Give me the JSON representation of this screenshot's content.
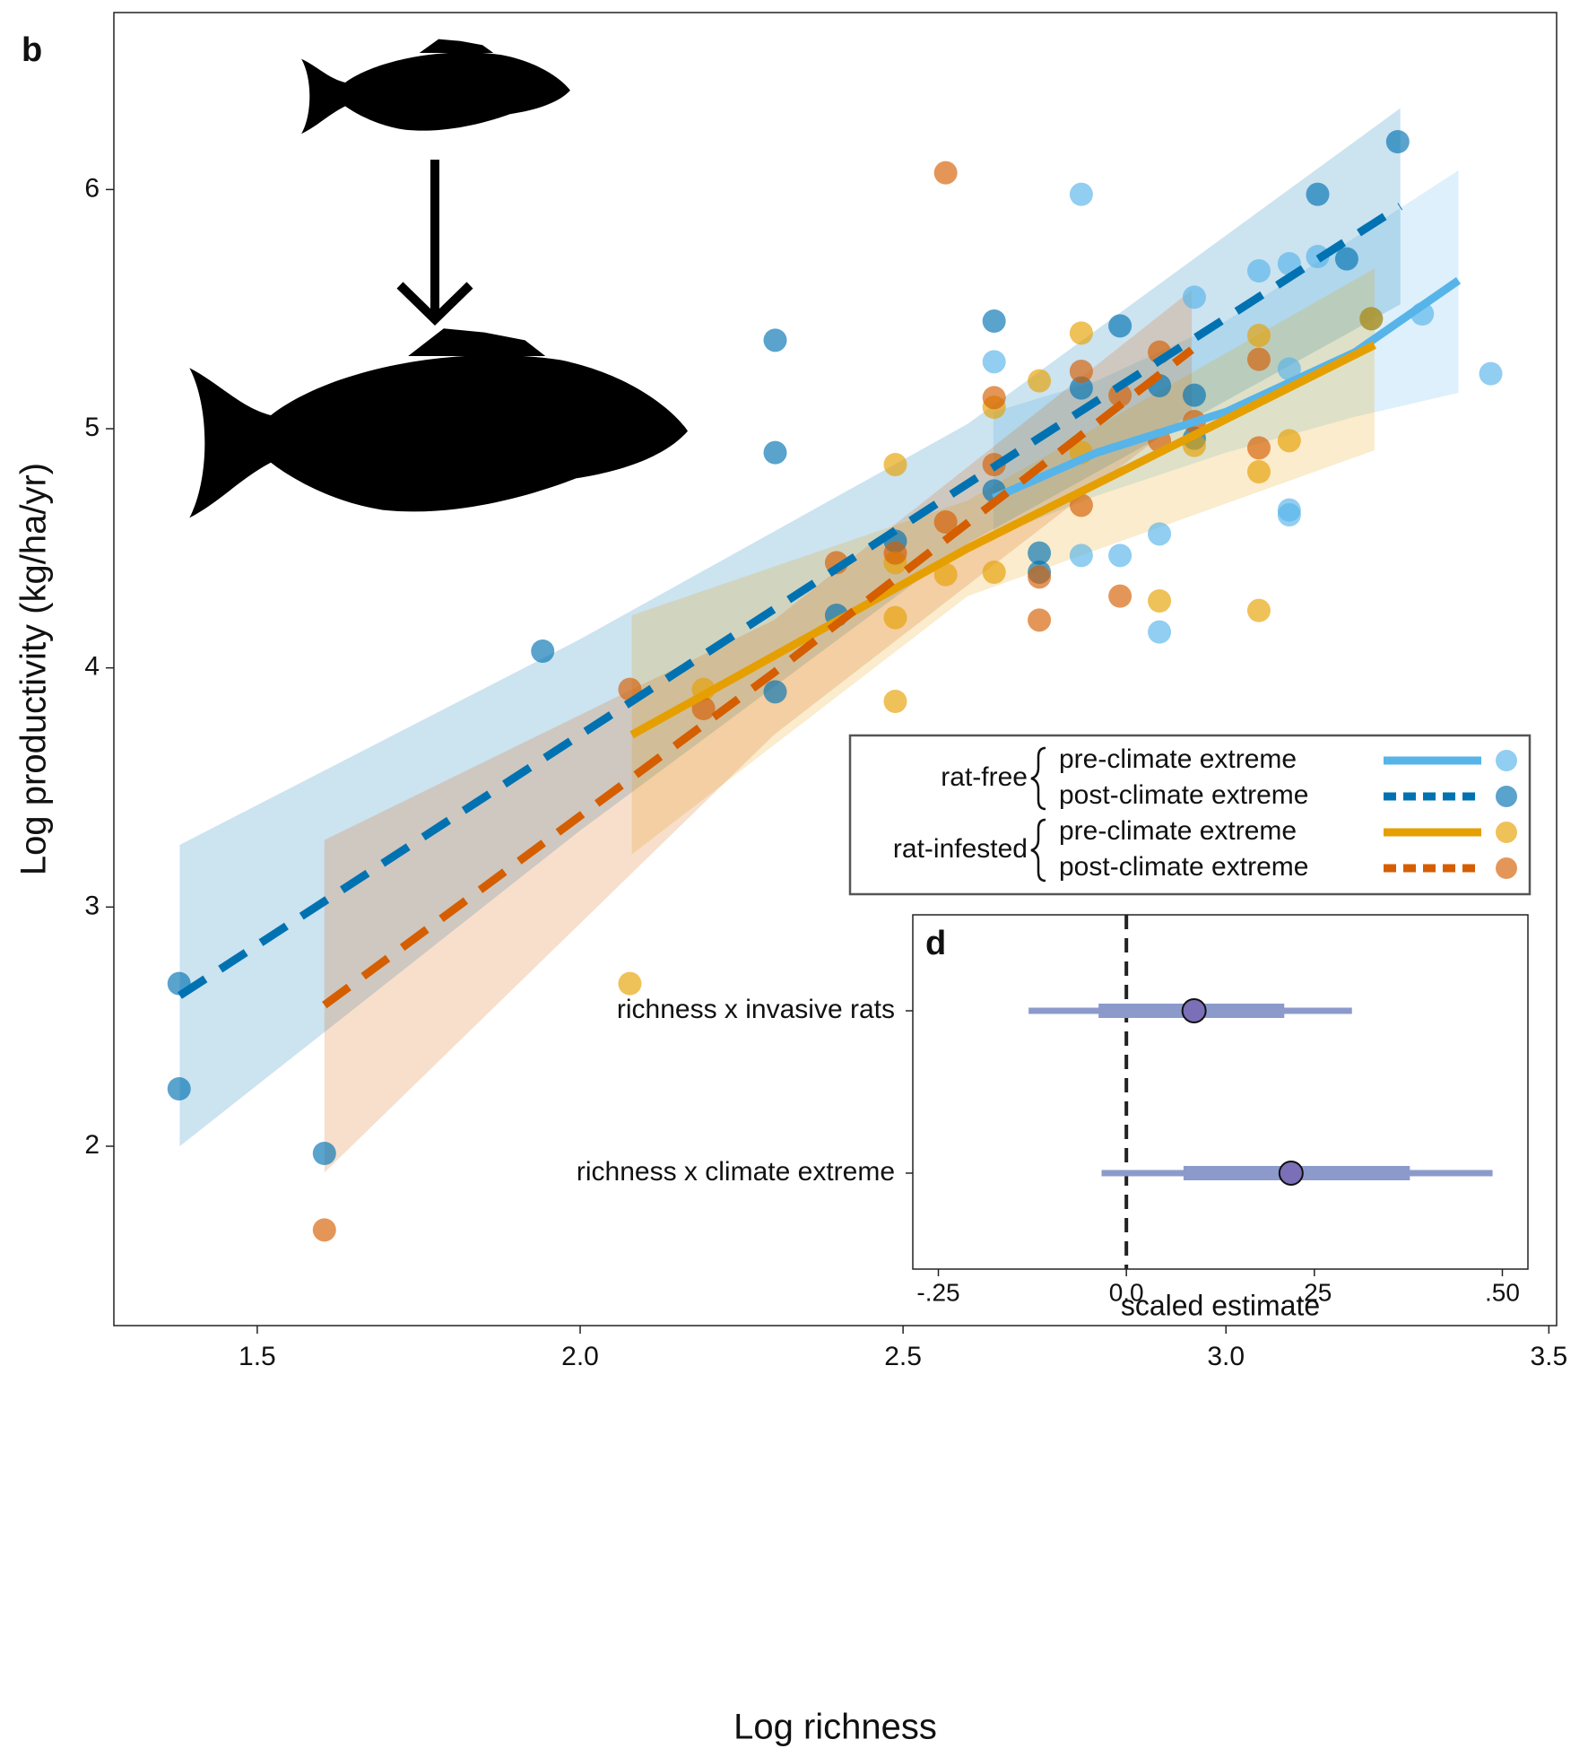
{
  "chart_data": [
    {
      "type": "scatter",
      "panel_label": "b",
      "x_label": "Log richness",
      "y_label": "Log productivity (kg/ha/yr)",
      "xlim": [
        1.278,
        3.512
      ],
      "ylim": [
        1.25,
        6.74
      ],
      "xticks": [
        1.5,
        {
          "value": 2,
          "label": "2.0"
        },
        2.5,
        {
          "value": 3,
          "label": "3.0"
        },
        3.5
      ],
      "yticks": [
        2,
        3,
        4,
        5,
        6
      ],
      "groups": [
        {
          "name": "rat-free",
          "series": [
            {
              "name": "pre-climate extreme",
              "color": "#56B4E9",
              "line_style": "solid",
              "x": [
                2.776,
                2.641,
                2.951,
                3.051,
                3.098,
                3.142,
                3.304,
                3.41,
                3.098,
                3.098,
                2.897,
                2.836,
                2.776,
                2.897,
                3.098
              ],
              "y": [
                5.98,
                5.28,
                5.55,
                5.66,
                5.69,
                5.72,
                5.48,
                5.23,
                4.66,
                4.64,
                4.56,
                4.47,
                4.47,
                4.15,
                5.25
              ],
              "fit": {
                "x": [
                  2.64,
                  2.8,
                  3.0,
                  3.2,
                  3.36
                ],
                "y": [
                  4.71,
                  4.9,
                  5.07,
                  5.32,
                  5.62
                ],
                "lower": [
                  4.55,
                  4.72,
                  4.9,
                  5.05,
                  5.15
                ],
                "upper": [
                  5.07,
                  5.2,
                  5.45,
                  5.8,
                  6.08
                ]
              }
            },
            {
              "name": "post-climate extreme",
              "color": "#0072B2",
              "line_style": "dashed",
              "x": [
                1.379,
                1.379,
                1.604,
                1.942,
                2.302,
                2.302,
                2.302,
                2.641,
                2.836,
                3.266,
                3.142,
                3.187,
                2.397,
                2.488,
                2.641,
                2.711,
                2.711,
                2.776,
                2.897,
                2.951,
                2.951,
                3.225
              ],
              "y": [
                2.68,
                2.24,
                1.97,
                4.07,
                5.37,
                4.9,
                3.9,
                5.45,
                5.43,
                6.2,
                5.98,
                5.71,
                4.22,
                4.53,
                4.74,
                4.48,
                4.4,
                5.17,
                5.18,
                5.14,
                4.96,
                5.46
              ],
              "fit": {
                "x": [
                  1.38,
                  2.0,
                  2.6,
                  3.27
                ],
                "y": [
                  2.63,
                  3.72,
                  4.77,
                  5.93
                ],
                "lower": [
                  2.0,
                  3.32,
                  4.52,
                  5.52
                ],
                "upper": [
                  3.26,
                  4.12,
                  5.02,
                  6.34
                ]
              }
            }
          ]
        },
        {
          "name": "rat-infested",
          "series": [
            {
              "name": "pre-climate extreme",
              "color": "#E69F00",
              "line_style": "solid",
              "x": [
                2.077,
                2.488,
                2.488,
                2.776,
                2.711,
                2.641,
                2.191,
                2.488,
                2.488,
                2.566,
                2.641,
                2.897,
                3.051,
                3.051,
                3.098,
                3.051,
                2.951,
                2.776,
                3.225
              ],
              "y": [
                2.68,
                3.86,
                4.85,
                5.4,
                5.2,
                5.09,
                3.91,
                4.44,
                4.21,
                4.39,
                4.4,
                4.28,
                4.24,
                4.82,
                4.95,
                5.39,
                4.93,
                4.9,
                5.46
              ],
              "fit": {
                "x": [
                  2.08,
                  2.6,
                  3.23
                ],
                "y": [
                  3.72,
                  4.5,
                  5.35
                ],
                "lower": [
                  3.22,
                  4.3,
                  4.91
                ],
                "upper": [
                  4.22,
                  4.7,
                  5.67
                ]
              }
            },
            {
              "name": "post-climate extreme",
              "color": "#D55E00",
              "line_style": "dashed",
              "x": [
                2.566,
                1.604,
                2.077,
                2.191,
                2.397,
                2.488,
                2.566,
                2.641,
                2.641,
                2.711,
                2.711,
                2.776,
                2.776,
                2.836,
                2.836,
                2.897,
                2.897,
                2.951,
                3.051,
                3.051
              ],
              "y": [
                6.07,
                1.65,
                3.91,
                3.83,
                4.44,
                4.48,
                4.61,
                5.13,
                4.85,
                4.2,
                4.38,
                5.24,
                4.68,
                5.14,
                4.3,
                5.32,
                4.95,
                5.03,
                4.92,
                5.29
              ],
              "fit": {
                "x": [
                  1.604,
                  2.3,
                  2.947
                ],
                "y": [
                  2.59,
                  3.98,
                  5.33
                ],
                "lower": [
                  1.89,
                  3.72,
                  5.07
                ],
                "upper": [
                  3.28,
                  4.2,
                  5.58
                ]
              }
            }
          ]
        }
      ]
    },
    {
      "type": "interval",
      "panel_label": "d",
      "x_label": "scaled estimate",
      "categories": [
        "richness x invasive rats",
        "richness x climate extreme"
      ],
      "estimates": [
        0.09,
        0.219
      ],
      "inner_lower": [
        -0.037,
        0.076
      ],
      "inner_upper": [
        0.21,
        0.377
      ],
      "outer_lower": [
        -0.13,
        -0.033
      ],
      "outer_upper": [
        0.3,
        0.487
      ],
      "xlim": [
        -0.284,
        0.534
      ],
      "xticks": [
        {
          "value": -0.25,
          "label": "-.25"
        },
        {
          "value": 0,
          "label": "0.0"
        },
        {
          "value": 0.25,
          "label": ".25"
        },
        {
          "value": 0.5,
          "label": ".50"
        }
      ],
      "reference_line": 0,
      "color": "#8C9ACB",
      "point_color": "#7B6FB8"
    }
  ]
}
